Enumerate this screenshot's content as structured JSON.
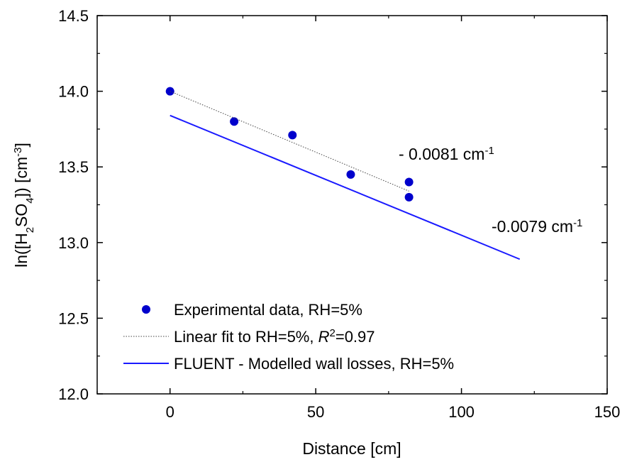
{
  "chart_data": {
    "type": "scatter",
    "xlabel": "Distance [cm]",
    "ylabel": "ln([H2SO4]) [cm-3]",
    "ylabel_parts": {
      "pre": "ln([H",
      "sub1": "2",
      "mid": "SO",
      "sub2": "4",
      "post": "]) [cm",
      "sup": "-3",
      "end": "]"
    },
    "xlim": [
      -25,
      150
    ],
    "ylim": [
      12.0,
      14.5
    ],
    "x_ticks": [
      0,
      50,
      100,
      150
    ],
    "x_tick_labels": [
      "0",
      "50",
      "100",
      "150"
    ],
    "y_ticks": [
      12.0,
      12.5,
      13.0,
      13.5,
      14.0,
      14.5
    ],
    "y_tick_labels": [
      "12.0",
      "12.5",
      "13.0",
      "13.5",
      "14.0",
      "14.5"
    ],
    "grid": false,
    "legend_position": "bottom-left",
    "series": [
      {
        "name": "Experimental data, RH=5%",
        "kind": "points",
        "color": "#0000cc",
        "points": [
          [
            0,
            14.0
          ],
          [
            22,
            13.8
          ],
          [
            42,
            13.71
          ],
          [
            62,
            13.45
          ],
          [
            82,
            13.4
          ],
          [
            82,
            13.3
          ]
        ]
      },
      {
        "name": "Linear fit to RH=5%, R2=0.97",
        "name_parts": {
          "pre": "Linear fit to RH=5%, ",
          "italic": "R",
          "sup": "2",
          "post": "=0.97"
        },
        "kind": "dotted-line",
        "color": "#444444",
        "points": [
          [
            0,
            14.0
          ],
          [
            82,
            13.34
          ]
        ]
      },
      {
        "name": "FLUENT - Modelled wall losses, RH=5%",
        "kind": "line",
        "color": "#1a1aff",
        "points": [
          [
            0,
            13.84
          ],
          [
            120,
            12.89
          ]
        ]
      }
    ],
    "annotations": [
      {
        "text": "- 0.0081 cm",
        "sup": "-1",
        "x": 78,
        "y": 13.6
      },
      {
        "text": "-0.0079 cm",
        "sup": "-1",
        "x": 110,
        "y": 13.05
      }
    ]
  }
}
